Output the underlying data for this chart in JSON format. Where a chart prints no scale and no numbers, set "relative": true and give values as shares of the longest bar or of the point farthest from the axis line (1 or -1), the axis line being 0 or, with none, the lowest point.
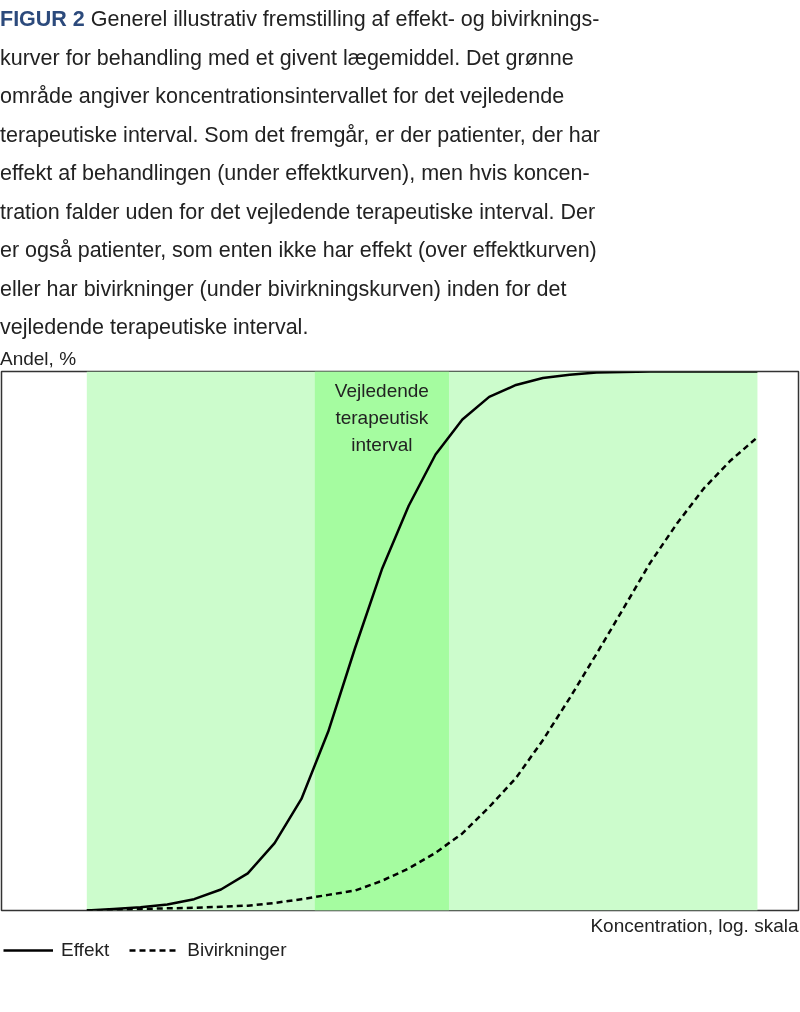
{
  "chart_data": {
    "type": "line",
    "relative": true,
    "title": "FIGUR 2",
    "subtitle": "Generel illustrativ fremstilling af effekt- og bivirknings-\nkurver for behandling med et givent lægemiddel. Det grønne\nområde angiver koncentrationsintervallet for det vejledende\nterapeutiske interval. Som det fremgår, er der patienter, der har\neffekt af behandlingen (under effektkurven), men hvis koncen-\ntration falder uden for det vejledende terapeutiske interval. Der\ner også patienter, som enten ikke har effekt (over effektkurven)\neller har bivirkninger (under bivirkningskurven) inden for det\nvejledende terapeutiske interval.",
    "ylabel": "Andel, %",
    "xlabel": "Koncentration, log. skala",
    "categories": [
      null,
      null,
      null,
      null,
      null,
      null,
      null,
      null,
      null,
      null,
      null,
      null,
      null,
      null,
      null,
      null,
      null,
      null,
      null,
      null,
      null,
      null,
      null,
      null,
      null,
      null
    ],
    "tick_labels": false,
    "legend": "bottom",
    "series": [
      {
        "name": "Effekt",
        "color": "#000000",
        "line_style": "solid",
        "values": [
          0,
          0.003,
          0.006,
          0.011,
          0.021,
          0.039,
          0.069,
          0.125,
          0.207,
          0.332,
          0.487,
          0.633,
          0.751,
          0.846,
          0.911,
          0.953,
          0.975,
          0.988,
          0.994,
          0.998,
          0.999,
          1.0,
          1.0,
          1.0,
          1.0,
          1.0
        ]
      },
      {
        "name": "Bivirkninger",
        "color": "#000000",
        "line_style": "dashed",
        "values": [
          0,
          0.001,
          0.003,
          0.004,
          0.005,
          0.007,
          0.009,
          0.014,
          0.021,
          0.029,
          0.037,
          0.055,
          0.078,
          0.107,
          0.143,
          0.192,
          0.246,
          0.316,
          0.394,
          0.476,
          0.56,
          0.645,
          0.718,
          0.783,
          0.835,
          0.878
        ]
      }
    ],
    "annotations": [
      "Vejledende\nterapeutisk\ninterval"
    ]
  }
}
